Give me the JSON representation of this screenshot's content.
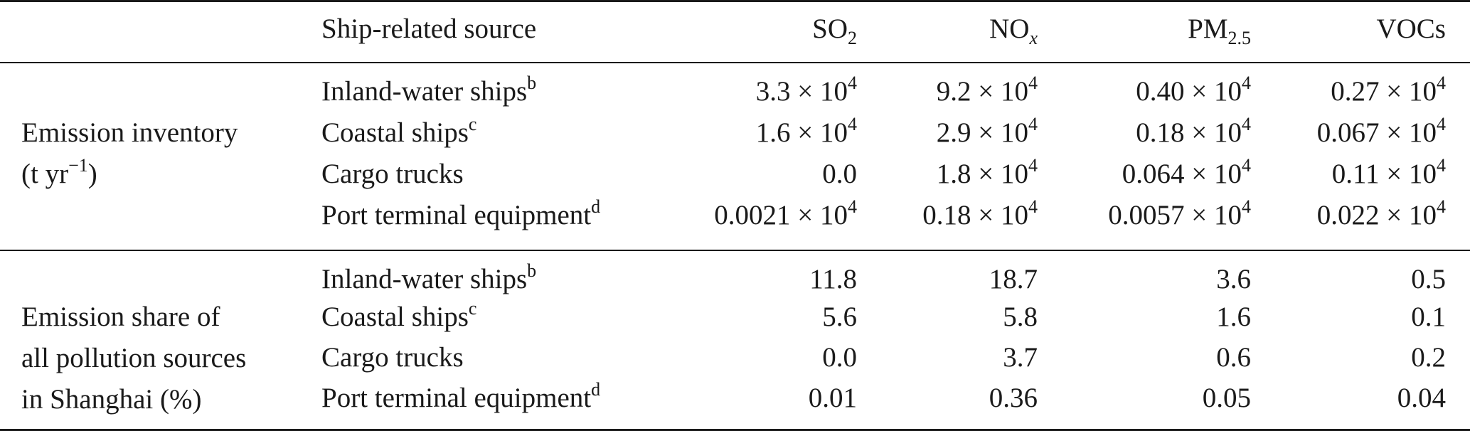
{
  "header": {
    "source": "Ship-related source",
    "so2": {
      "base": "SO",
      "sub": "2"
    },
    "nox": {
      "base": "NO",
      "sub": "x"
    },
    "pm": {
      "base": "PM",
      "sub": "2.5"
    },
    "vocs": "VOCs"
  },
  "sections": [
    {
      "label_lines": [
        "Emission inventory",
        "(t yr",
        "−1",
        ")"
      ],
      "rows": [
        {
          "source": "Inland-water ships",
          "note": "b",
          "values": [
            {
              "m": "3.3 × 10",
              "e": "4"
            },
            {
              "m": "9.2 × 10",
              "e": "4"
            },
            {
              "m": "0.40 × 10",
              "e": "4"
            },
            {
              "m": "0.27 × 10",
              "e": "4"
            }
          ]
        },
        {
          "source": "Coastal ships",
          "note": "c",
          "values": [
            {
              "m": "1.6 × 10",
              "e": "4"
            },
            {
              "m": "2.9 × 10",
              "e": "4"
            },
            {
              "m": "0.18 × 10",
              "e": "4"
            },
            {
              "m": "0.067 × 10",
              "e": "4"
            }
          ]
        },
        {
          "source": "Cargo trucks",
          "note": "",
          "values": [
            {
              "m": "0.0",
              "e": ""
            },
            {
              "m": "1.8 × 10",
              "e": "4"
            },
            {
              "m": "0.064 × 10",
              "e": "4"
            },
            {
              "m": "0.11 × 10",
              "e": "4"
            }
          ]
        },
        {
          "source": "Port terminal equipment",
          "note": "d",
          "values": [
            {
              "m": "0.0021 × 10",
              "e": "4"
            },
            {
              "m": "0.18 × 10",
              "e": "4"
            },
            {
              "m": "0.0057 × 10",
              "e": "4"
            },
            {
              "m": "0.022 × 10",
              "e": "4"
            }
          ]
        }
      ]
    },
    {
      "label_lines": [
        "Emission share of",
        "all pollution sources",
        "in Shanghai (%)"
      ],
      "rows": [
        {
          "source": "Inland-water ships",
          "note": "b",
          "values": [
            "11.8",
            "18.7",
            "3.6",
            "0.5"
          ]
        },
        {
          "source": "Coastal ships",
          "note": "c",
          "values": [
            "5.6",
            "5.8",
            "1.6",
            "0.1"
          ]
        },
        {
          "source": "Cargo trucks",
          "note": "",
          "values": [
            "0.0",
            "3.7",
            "0.6",
            "0.2"
          ]
        },
        {
          "source": "Port terminal equipment",
          "note": "d",
          "values": [
            "0.01",
            "0.36",
            "0.05",
            "0.04"
          ]
        }
      ]
    }
  ]
}
